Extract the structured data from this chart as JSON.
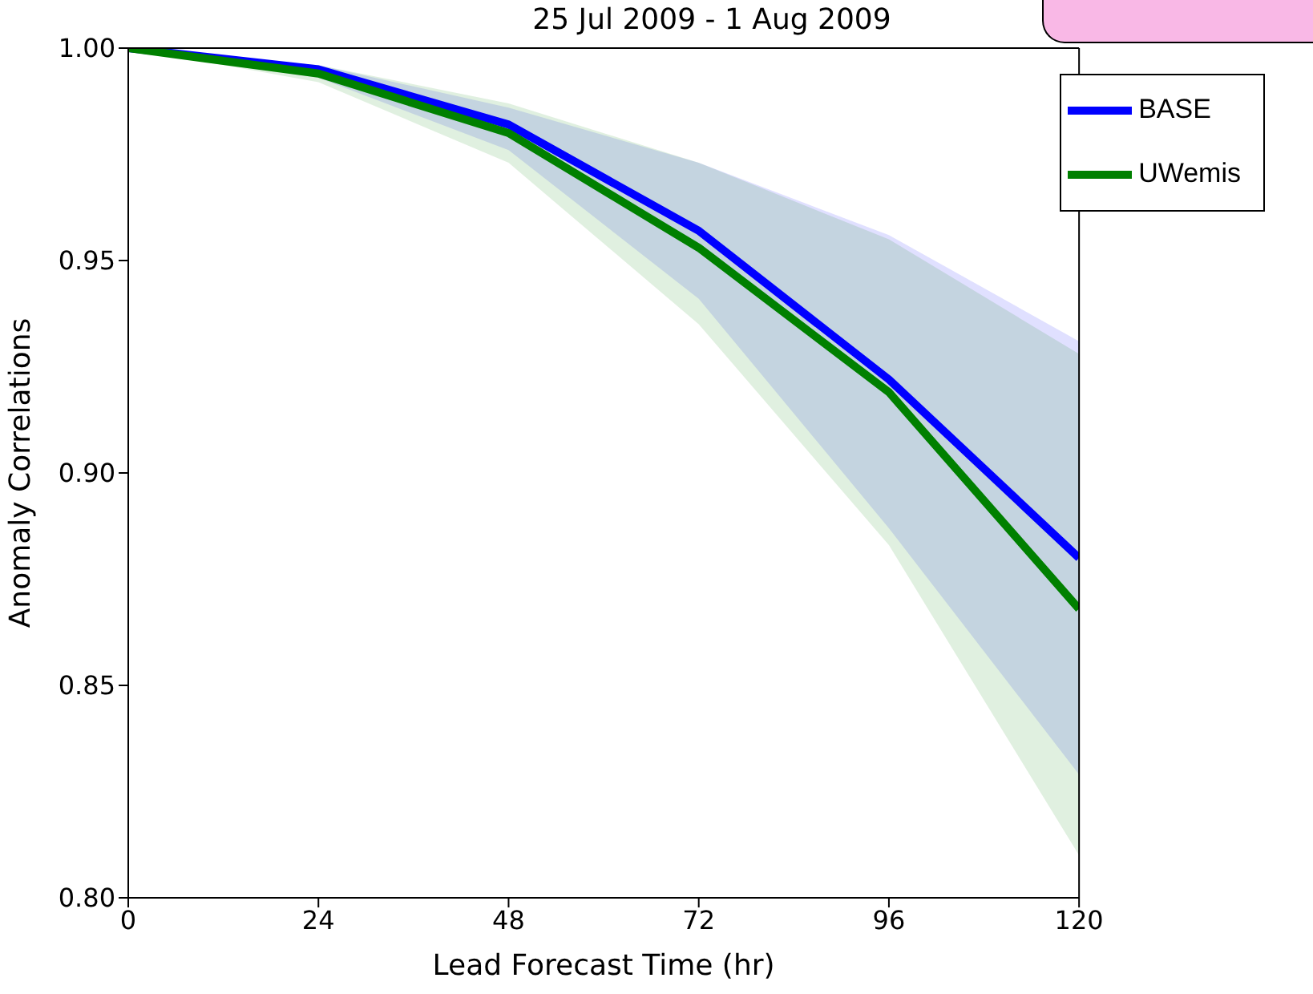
{
  "chart_data": {
    "type": "line",
    "title": "25 Jul 2009 - 1 Aug 2009",
    "xlabel": "Lead Forecast Time (hr)",
    "ylabel": "Anomaly Correlations",
    "x": [
      0,
      24,
      48,
      72,
      96,
      120
    ],
    "series": [
      {
        "name": "BASE",
        "color": "#0000ff",
        "values": [
          1.0,
          0.995,
          0.982,
          0.957,
          0.922,
          0.88
        ],
        "lower": [
          1.0,
          0.993,
          0.976,
          0.941,
          0.887,
          0.829
        ],
        "upper": [
          1.0,
          0.996,
          0.986,
          0.973,
          0.956,
          0.931
        ]
      },
      {
        "name": "UWemis",
        "color": "#008000",
        "values": [
          1.0,
          0.994,
          0.98,
          0.953,
          0.919,
          0.868
        ],
        "lower": [
          1.0,
          0.992,
          0.973,
          0.935,
          0.883,
          0.81
        ],
        "upper": [
          1.0,
          0.996,
          0.987,
          0.973,
          0.955,
          0.928
        ]
      }
    ],
    "xlim": [
      0,
      120
    ],
    "xticks": [
      0,
      24,
      48,
      72,
      96,
      120
    ],
    "ylim": [
      0.8,
      1.0
    ],
    "yticks": [
      {
        "value": 0.8,
        "label": "0.80"
      },
      {
        "value": 0.85,
        "label": "0.85"
      },
      {
        "value": 0.9,
        "label": "0.90"
      },
      {
        "value": 0.95,
        "label": "0.95"
      },
      {
        "value": 1.0,
        "label": "1.00"
      }
    ],
    "legend": "top right",
    "marker": "none",
    "line_style": "solid",
    "grid": false
  }
}
